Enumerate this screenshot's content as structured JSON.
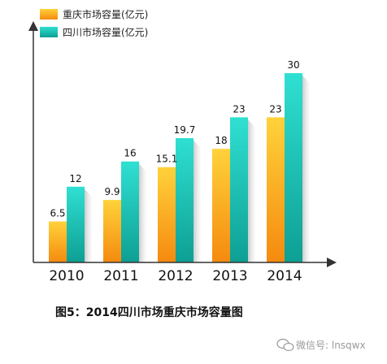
{
  "chart_data": {
    "type": "bar",
    "categories": [
      "2010",
      "2011",
      "2012",
      "2013",
      "2014"
    ],
    "series": [
      {
        "name": "重庆市场容量(亿元)",
        "values": [
          6.5,
          9.9,
          15.1,
          18,
          23
        ],
        "value_labels": [
          "6.5",
          "9.9",
          "15.1",
          "18",
          "23"
        ],
        "color": "#f7a21b"
      },
      {
        "name": "四川市场容量(亿元)",
        "values": [
          12,
          16,
          19.7,
          23,
          30
        ],
        "value_labels": [
          "12",
          "16",
          "19.7",
          "23",
          "30"
        ],
        "color": "#1bbfb4"
      }
    ],
    "ylim": [
      0,
      30
    ],
    "grid": false,
    "legend_position": "top-left",
    "caption": "图5：2014四川市场重庆市场容量图"
  },
  "watermark": {
    "text": "微信号: lnsqwx"
  }
}
